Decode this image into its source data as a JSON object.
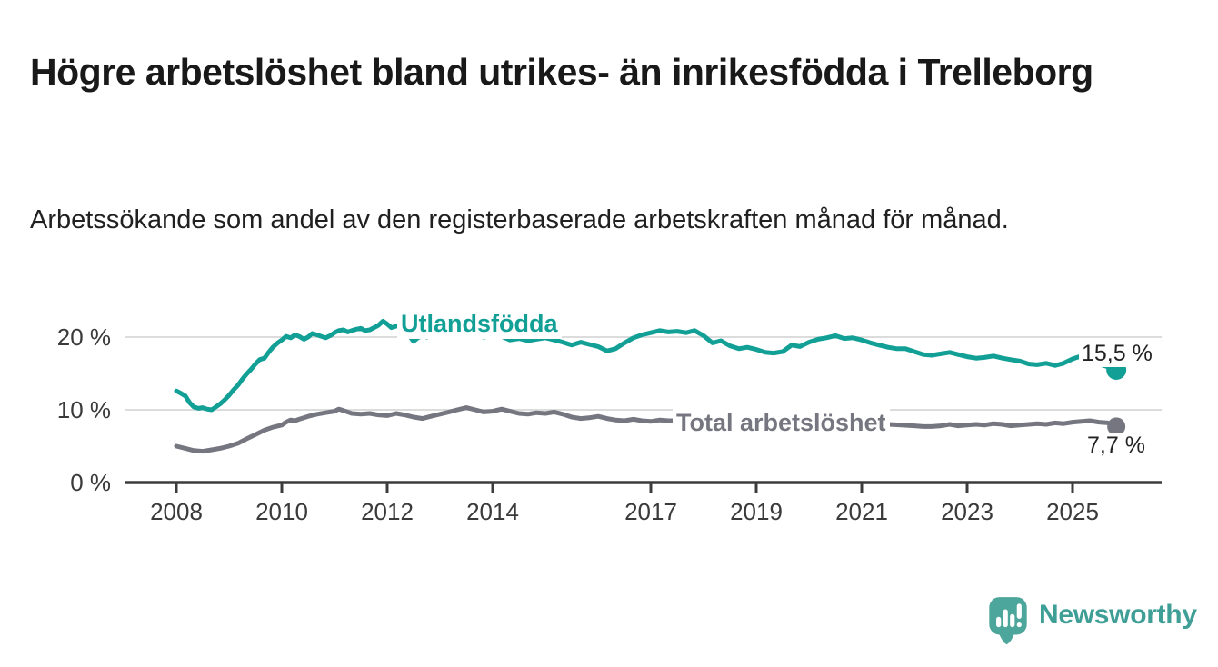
{
  "title": "Högre arbetslöshet bland utrikes- än inrikesfödda i Trelleborg",
  "subtitle": "Arbetssökande som andel av den registerbaserade arbetskraften månad för månad.",
  "branding": {
    "logo_text": "Newsworthy",
    "logo_icon": "speech-bubble-with-bar-chart-and-exclamation",
    "icon_color": "#4DA69B",
    "text_color": "#3F9F97"
  },
  "colors": {
    "utlandsfodda_line": "#12A096",
    "total_line": "#767680",
    "axis": "#3C3C3C",
    "grid": "#DCDCDC",
    "tick_text": "#3A3A3A"
  },
  "chart_data": {
    "type": "line",
    "title": "Högre arbetslöshet bland utrikes- än inrikesfödda i Trelleborg",
    "subtitle": "Arbetssökande som andel av den registerbaserade arbetskraften månad för månad.",
    "xlabel": "",
    "ylabel": "",
    "x_unit": "year (monthly data)",
    "y_unit": "%",
    "xlim": [
      2007.0,
      2026.7
    ],
    "ylim": [
      0,
      23.5
    ],
    "grid": "horizontal",
    "legend_position": "inline-line-labels",
    "x_ticks": [
      2008,
      2010,
      2012,
      2014,
      2017,
      2019,
      2021,
      2023,
      2025
    ],
    "x_tick_labels": [
      "2008",
      "2010",
      "2012",
      "2014",
      "2017",
      "2019",
      "2021",
      "2023",
      "2025"
    ],
    "y_ticks": [
      0,
      10,
      20
    ],
    "y_tick_labels": [
      "0 %",
      "10 %",
      "20 %"
    ],
    "series": [
      {
        "name": "Utlandsfödda",
        "color": "#12A096",
        "end_value": 15.5,
        "end_label": "15,5 %",
        "points": [
          [
            2008.0,
            12.6
          ],
          [
            2008.08,
            12.3
          ],
          [
            2008.17,
            11.9
          ],
          [
            2008.25,
            11.0
          ],
          [
            2008.33,
            10.4
          ],
          [
            2008.42,
            10.2
          ],
          [
            2008.5,
            10.3
          ],
          [
            2008.58,
            10.1
          ],
          [
            2008.67,
            10.0
          ],
          [
            2008.75,
            10.4
          ],
          [
            2008.83,
            10.8
          ],
          [
            2008.92,
            11.4
          ],
          [
            2009.0,
            12.0
          ],
          [
            2009.08,
            12.7
          ],
          [
            2009.17,
            13.4
          ],
          [
            2009.25,
            14.2
          ],
          [
            2009.33,
            14.9
          ],
          [
            2009.42,
            15.6
          ],
          [
            2009.5,
            16.3
          ],
          [
            2009.58,
            16.9
          ],
          [
            2009.67,
            17.1
          ],
          [
            2009.75,
            17.9
          ],
          [
            2009.83,
            18.6
          ],
          [
            2009.92,
            19.2
          ],
          [
            2010.0,
            19.6
          ],
          [
            2010.08,
            20.1
          ],
          [
            2010.17,
            19.9
          ],
          [
            2010.25,
            20.3
          ],
          [
            2010.33,
            20.1
          ],
          [
            2010.42,
            19.7
          ],
          [
            2010.5,
            20.0
          ],
          [
            2010.58,
            20.5
          ],
          [
            2010.67,
            20.3
          ],
          [
            2010.75,
            20.1
          ],
          [
            2010.83,
            19.9
          ],
          [
            2010.92,
            20.2
          ],
          [
            2011.0,
            20.6
          ],
          [
            2011.08,
            20.9
          ],
          [
            2011.17,
            21.0
          ],
          [
            2011.25,
            20.7
          ],
          [
            2011.33,
            20.9
          ],
          [
            2011.42,
            21.1
          ],
          [
            2011.5,
            21.2
          ],
          [
            2011.58,
            20.9
          ],
          [
            2011.67,
            21.0
          ],
          [
            2011.75,
            21.3
          ],
          [
            2011.83,
            21.6
          ],
          [
            2011.92,
            22.2
          ],
          [
            2012.0,
            21.8
          ],
          [
            2012.08,
            21.3
          ],
          [
            2012.17,
            21.5
          ],
          [
            2012.25,
            21.6
          ],
          [
            2012.33,
            21.0
          ],
          [
            2012.42,
            20.2
          ],
          [
            2012.5,
            19.4
          ],
          [
            2012.58,
            19.9
          ],
          [
            2012.67,
            20.2
          ],
          [
            2012.75,
            20.0
          ],
          [
            2012.83,
            20.3
          ],
          [
            2012.92,
            20.1
          ],
          [
            2013.0,
            20.2
          ],
          [
            2013.17,
            20.4
          ],
          [
            2013.33,
            20.2
          ],
          [
            2013.5,
            20.5
          ],
          [
            2013.67,
            20.3
          ],
          [
            2013.83,
            20.0
          ],
          [
            2014.0,
            20.2
          ],
          [
            2014.08,
            20.5
          ],
          [
            2014.17,
            20.1
          ],
          [
            2014.33,
            19.6
          ],
          [
            2014.5,
            19.8
          ],
          [
            2014.67,
            19.5
          ],
          [
            2014.83,
            19.7
          ],
          [
            2015.0,
            19.9
          ],
          [
            2015.17,
            19.6
          ],
          [
            2015.33,
            19.3
          ],
          [
            2015.5,
            18.9
          ],
          [
            2015.67,
            19.3
          ],
          [
            2015.83,
            19.0
          ],
          [
            2016.0,
            18.7
          ],
          [
            2016.17,
            18.1
          ],
          [
            2016.33,
            18.4
          ],
          [
            2016.5,
            19.2
          ],
          [
            2016.67,
            19.9
          ],
          [
            2016.83,
            20.3
          ],
          [
            2017.0,
            20.6
          ],
          [
            2017.17,
            20.9
          ],
          [
            2017.33,
            20.7
          ],
          [
            2017.5,
            20.8
          ],
          [
            2017.67,
            20.6
          ],
          [
            2017.83,
            20.9
          ],
          [
            2018.0,
            20.2
          ],
          [
            2018.17,
            19.2
          ],
          [
            2018.33,
            19.5
          ],
          [
            2018.5,
            18.8
          ],
          [
            2018.67,
            18.4
          ],
          [
            2018.83,
            18.6
          ],
          [
            2019.0,
            18.3
          ],
          [
            2019.17,
            17.9
          ],
          [
            2019.33,
            17.8
          ],
          [
            2019.5,
            18.0
          ],
          [
            2019.67,
            18.9
          ],
          [
            2019.83,
            18.7
          ],
          [
            2020.0,
            19.3
          ],
          [
            2020.17,
            19.7
          ],
          [
            2020.33,
            19.9
          ],
          [
            2020.5,
            20.2
          ],
          [
            2020.67,
            19.8
          ],
          [
            2020.83,
            19.9
          ],
          [
            2021.0,
            19.6
          ],
          [
            2021.17,
            19.2
          ],
          [
            2021.33,
            18.9
          ],
          [
            2021.5,
            18.6
          ],
          [
            2021.67,
            18.4
          ],
          [
            2021.83,
            18.4
          ],
          [
            2022.0,
            18.0
          ],
          [
            2022.17,
            17.6
          ],
          [
            2022.33,
            17.5
          ],
          [
            2022.5,
            17.7
          ],
          [
            2022.67,
            17.9
          ],
          [
            2022.83,
            17.6
          ],
          [
            2023.0,
            17.3
          ],
          [
            2023.17,
            17.1
          ],
          [
            2023.33,
            17.2
          ],
          [
            2023.5,
            17.4
          ],
          [
            2023.67,
            17.1
          ],
          [
            2023.83,
            16.9
          ],
          [
            2024.0,
            16.7
          ],
          [
            2024.17,
            16.3
          ],
          [
            2024.33,
            16.2
          ],
          [
            2024.5,
            16.4
          ],
          [
            2024.67,
            16.1
          ],
          [
            2024.83,
            16.4
          ],
          [
            2025.0,
            17.0
          ],
          [
            2025.17,
            17.4
          ],
          [
            2025.33,
            16.8
          ],
          [
            2025.5,
            16.3
          ],
          [
            2025.67,
            15.9
          ],
          [
            2025.83,
            15.5
          ]
        ]
      },
      {
        "name": "Total arbetslöshet",
        "color": "#767680",
        "end_value": 7.7,
        "end_label": "7,7 %",
        "points": [
          [
            2008.0,
            5.0
          ],
          [
            2008.17,
            4.7
          ],
          [
            2008.33,
            4.4
          ],
          [
            2008.5,
            4.3
          ],
          [
            2008.67,
            4.5
          ],
          [
            2008.83,
            4.7
          ],
          [
            2009.0,
            5.0
          ],
          [
            2009.17,
            5.4
          ],
          [
            2009.33,
            6.0
          ],
          [
            2009.5,
            6.6
          ],
          [
            2009.67,
            7.2
          ],
          [
            2009.83,
            7.6
          ],
          [
            2010.0,
            7.9
          ],
          [
            2010.08,
            8.3
          ],
          [
            2010.17,
            8.6
          ],
          [
            2010.25,
            8.5
          ],
          [
            2010.33,
            8.7
          ],
          [
            2010.5,
            9.1
          ],
          [
            2010.67,
            9.4
          ],
          [
            2010.83,
            9.6
          ],
          [
            2011.0,
            9.8
          ],
          [
            2011.08,
            10.1
          ],
          [
            2011.17,
            9.9
          ],
          [
            2011.33,
            9.5
          ],
          [
            2011.5,
            9.4
          ],
          [
            2011.67,
            9.5
          ],
          [
            2011.83,
            9.3
          ],
          [
            2012.0,
            9.2
          ],
          [
            2012.17,
            9.5
          ],
          [
            2012.33,
            9.3
          ],
          [
            2012.5,
            9.0
          ],
          [
            2012.67,
            8.8
          ],
          [
            2012.83,
            9.1
          ],
          [
            2013.0,
            9.4
          ],
          [
            2013.17,
            9.7
          ],
          [
            2013.33,
            10.0
          ],
          [
            2013.5,
            10.3
          ],
          [
            2013.67,
            10.0
          ],
          [
            2013.83,
            9.7
          ],
          [
            2014.0,
            9.8
          ],
          [
            2014.17,
            10.1
          ],
          [
            2014.33,
            9.8
          ],
          [
            2014.5,
            9.5
          ],
          [
            2014.67,
            9.4
          ],
          [
            2014.83,
            9.6
          ],
          [
            2015.0,
            9.5
          ],
          [
            2015.17,
            9.7
          ],
          [
            2015.33,
            9.4
          ],
          [
            2015.5,
            9.0
          ],
          [
            2015.67,
            8.8
          ],
          [
            2015.83,
            8.9
          ],
          [
            2016.0,
            9.1
          ],
          [
            2016.17,
            8.8
          ],
          [
            2016.33,
            8.6
          ],
          [
            2016.5,
            8.5
          ],
          [
            2016.67,
            8.7
          ],
          [
            2016.83,
            8.5
          ],
          [
            2017.0,
            8.4
          ],
          [
            2017.17,
            8.6
          ],
          [
            2017.33,
            8.5
          ],
          [
            2017.5,
            8.5
          ],
          [
            2017.67,
            8.3
          ],
          [
            2017.83,
            8.2
          ],
          [
            2018.0,
            8.1
          ],
          [
            2018.25,
            8.0
          ],
          [
            2018.5,
            7.9
          ],
          [
            2018.75,
            7.8
          ],
          [
            2019.0,
            7.8
          ],
          [
            2019.25,
            7.7
          ],
          [
            2019.5,
            7.7
          ],
          [
            2019.75,
            7.9
          ],
          [
            2020.0,
            8.1
          ],
          [
            2020.25,
            8.4
          ],
          [
            2020.5,
            8.5
          ],
          [
            2020.75,
            8.4
          ],
          [
            2021.0,
            8.3
          ],
          [
            2021.25,
            8.1
          ],
          [
            2021.5,
            8.0
          ],
          [
            2021.75,
            7.9
          ],
          [
            2022.0,
            7.8
          ],
          [
            2022.17,
            7.7
          ],
          [
            2022.33,
            7.7
          ],
          [
            2022.5,
            7.8
          ],
          [
            2022.67,
            8.0
          ],
          [
            2022.83,
            7.8
          ],
          [
            2023.0,
            7.9
          ],
          [
            2023.17,
            8.0
          ],
          [
            2023.33,
            7.9
          ],
          [
            2023.5,
            8.1
          ],
          [
            2023.67,
            8.0
          ],
          [
            2023.83,
            7.8
          ],
          [
            2024.0,
            7.9
          ],
          [
            2024.17,
            8.0
          ],
          [
            2024.33,
            8.1
          ],
          [
            2024.5,
            8.0
          ],
          [
            2024.67,
            8.2
          ],
          [
            2024.83,
            8.1
          ],
          [
            2025.0,
            8.3
          ],
          [
            2025.17,
            8.4
          ],
          [
            2025.33,
            8.5
          ],
          [
            2025.5,
            8.3
          ],
          [
            2025.67,
            8.2
          ],
          [
            2025.83,
            7.7
          ]
        ]
      }
    ]
  }
}
